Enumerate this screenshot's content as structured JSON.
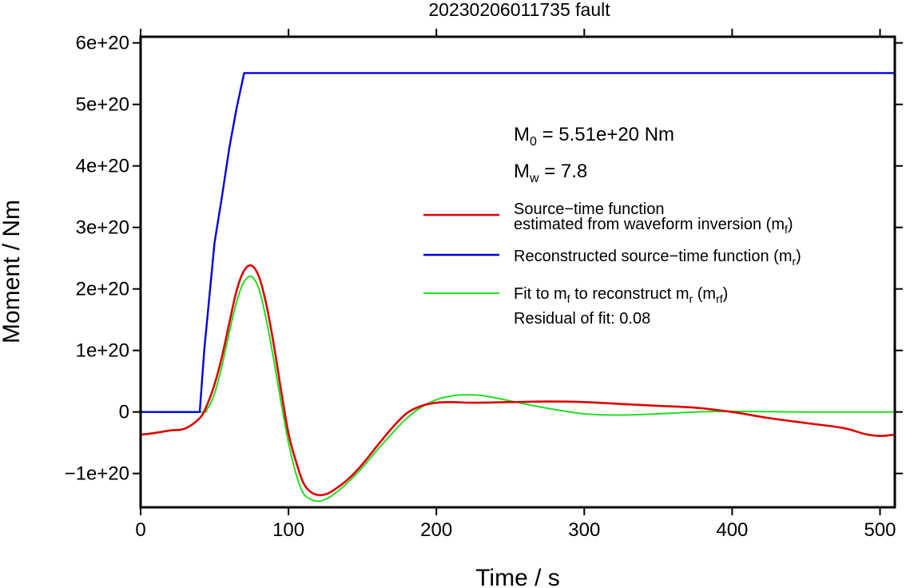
{
  "chart_data": {
    "type": "line",
    "title": "20230206011735 fault",
    "xlabel": "Time / s",
    "ylabel": "Moment / Nm",
    "xlim": [
      0,
      510
    ],
    "ylim": [
      -1.55e+20,
      6.1e+20
    ],
    "x_ticks": [
      0,
      100,
      200,
      300,
      400,
      500
    ],
    "x_tick_labels": [
      "0",
      "100",
      "200",
      "300",
      "400",
      "500"
    ],
    "y_ticks": [
      -1e+20,
      0,
      1e+20,
      2e+20,
      3e+20,
      4e+20,
      5e+20,
      6e+20
    ],
    "y_tick_labels": [
      "−1e+20",
      "0",
      "1e+20",
      "2e+20",
      "3e+20",
      "4e+20",
      "5e+20",
      "6e+20"
    ],
    "grid": false,
    "legend_position": "center-right",
    "annotations": {
      "m0_prefix": "M",
      "m0_sub": "0",
      "m0_value": " = 5.51e+20 Nm",
      "mw_prefix": "M",
      "mw_sub": "w",
      "mw_value": " = 7.8",
      "residual": "Residual of fit: 0.08"
    },
    "series": [
      {
        "key": "mf",
        "color": "#dd0000",
        "legend_line1": "Source−time function",
        "legend_line2_main": "estimated from waveform inversion (m",
        "legend_line2_sub": "f",
        "legend_line2_end": ")",
        "x": [
          0,
          10,
          20,
          30,
          40,
          45,
          50,
          55,
          60,
          65,
          70,
          75,
          80,
          85,
          90,
          95,
          100,
          105,
          110,
          115,
          120,
          125,
          130,
          140,
          150,
          160,
          170,
          180,
          190,
          200,
          210,
          225,
          250,
          275,
          300,
          325,
          350,
          375,
          400,
          425,
          450,
          475,
          490,
          500,
          510
        ],
        "y": [
          -3.7e+19,
          -3.4e+19,
          -3e+19,
          -2.7e+19,
          -1e+19,
          1.2e+19,
          4.5e+19,
          9e+19,
          1.45e+20,
          1.98e+20,
          2.3e+20,
          2.38e+20,
          2.2e+20,
          1.75e+20,
          1.1e+20,
          3.5e+19,
          -3.5e+19,
          -8e+19,
          -1.15e+20,
          -1.3e+20,
          -1.35e+20,
          -1.34e+20,
          -1.28e+20,
          -1.1e+20,
          -8.5e+19,
          -5.5e+19,
          -2.6e+19,
          -2e+18,
          1e+19,
          1.5e+19,
          1.6e+19,
          1.5e+19,
          1.6e+19,
          1.7e+19,
          1.6e+19,
          1.3e+19,
          1e+19,
          7e+18,
          0,
          -1e+19,
          -1.8e+19,
          -2.6e+19,
          -3.6e+19,
          -3.9e+19,
          -3.7e+19
        ]
      },
      {
        "key": "mr",
        "color": "#0000dd",
        "legend_main": "Reconstructed source−time function (m",
        "legend_sub": "r",
        "legend_end": ")",
        "x": [
          0,
          40,
          43,
          47,
          50,
          55,
          60,
          65,
          70,
          100,
          200,
          300,
          400,
          510
        ],
        "y": [
          0,
          0,
          1e+20,
          2e+20,
          2.75e+20,
          3.5e+20,
          4.3e+20,
          4.95e+20,
          5.51e+20,
          5.51e+20,
          5.51e+20,
          5.51e+20,
          5.51e+20,
          5.51e+20
        ]
      },
      {
        "key": "mrf",
        "color": "#22dd22",
        "legend_main": "Fit to m",
        "legend_sub1": "f",
        "legend_mid": " to reconstruct m",
        "legend_sub2": "r",
        "legend_open": " (m",
        "legend_sub3": "rf",
        "legend_end": ")",
        "x": [
          0,
          40,
          45,
          50,
          55,
          60,
          65,
          70,
          75,
          80,
          85,
          90,
          95,
          100,
          105,
          110,
          115,
          120,
          125,
          130,
          140,
          150,
          160,
          170,
          180,
          190,
          200,
          210,
          220,
          230,
          240,
          250,
          275,
          300,
          325,
          350,
          375,
          400,
          450,
          510
        ],
        "y": [
          0,
          0,
          5e+18,
          3e+19,
          7.5e+19,
          1.3e+20,
          1.8e+20,
          2.12e+20,
          2.2e+20,
          2e+20,
          1.5e+20,
          8.5e+19,
          1.5e+19,
          -5e+19,
          -1e+20,
          -1.32e+20,
          -1.42e+20,
          -1.45e+20,
          -1.42e+20,
          -1.35e+20,
          -1.15e+20,
          -9e+19,
          -6.2e+19,
          -3.5e+19,
          -1e+19,
          8e+18,
          2e+19,
          2.6e+19,
          2.8e+19,
          2.7e+19,
          2.3e+19,
          1.8e+19,
          6e+18,
          -3e+18,
          -5e+18,
          -3e+18,
          0,
          1e+18,
          0,
          0
        ]
      }
    ]
  }
}
